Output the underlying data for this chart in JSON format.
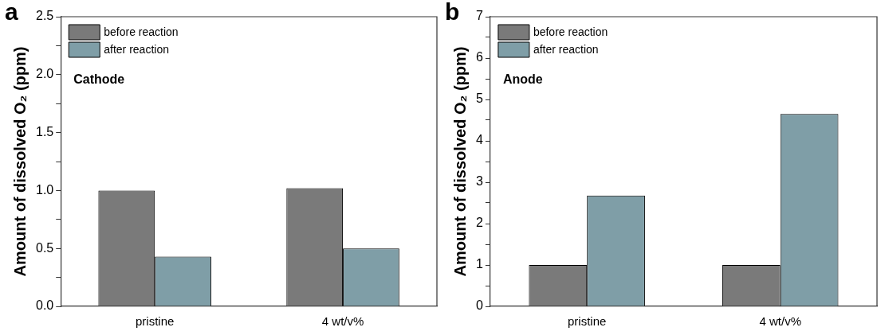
{
  "chart_data": [
    {
      "type": "bar",
      "title": "a",
      "ylabel": "Amount of dissolved O₂ (ppm)",
      "categories": [
        "pristine",
        "4 wt/v%"
      ],
      "series": [
        {
          "name": "before reaction",
          "color": "#7a7a7a",
          "values": [
            1.0,
            1.02
          ]
        },
        {
          "name": "after reaction",
          "color": "#7f9ea7",
          "values": [
            0.43,
            0.5
          ]
        }
      ],
      "ylim": [
        0,
        2.5
      ],
      "yticks": [
        {
          "value": 0,
          "label": "0.0"
        },
        {
          "value": 0.25,
          "label": null
        },
        {
          "value": 0.5,
          "label": "0.5"
        },
        {
          "value": 0.75,
          "label": null
        },
        {
          "value": 1,
          "label": "1.0"
        },
        {
          "value": 1.25,
          "label": null
        },
        {
          "value": 1.5,
          "label": "1.5"
        },
        {
          "value": 1.75,
          "label": null
        },
        {
          "value": 2,
          "label": "2.0"
        },
        {
          "value": 2.25,
          "label": null
        },
        {
          "value": 2.5,
          "label": "2.5"
        }
      ],
      "annotations": [
        "Cathode"
      ],
      "legend": "top left",
      "grid": false
    },
    {
      "type": "bar",
      "title": "b",
      "ylabel": "Amount of dissolved O₂ (ppm)",
      "categories": [
        "pristine",
        "4 wt/v%"
      ],
      "series": [
        {
          "name": "before reaction",
          "color": "#7a7a7a",
          "values": [
            1.0,
            1.0
          ]
        },
        {
          "name": "after reaction",
          "color": "#7f9ea7",
          "values": [
            2.68,
            4.65
          ]
        }
      ],
      "ylim": [
        0,
        7
      ],
      "yticks": [
        0,
        {
          "value": 0.5,
          "label": null
        },
        1,
        {
          "value": 1.5,
          "label": null
        },
        2,
        {
          "value": 2.5,
          "label": null
        },
        3,
        {
          "value": 3.5,
          "label": null
        },
        4,
        {
          "value": 4.5,
          "label": null
        },
        5,
        {
          "value": 5.5,
          "label": null
        },
        6,
        {
          "value": 6.5,
          "label": null
        },
        7
      ],
      "annotations": [
        "Anode"
      ],
      "legend": "top left",
      "grid": false
    }
  ]
}
